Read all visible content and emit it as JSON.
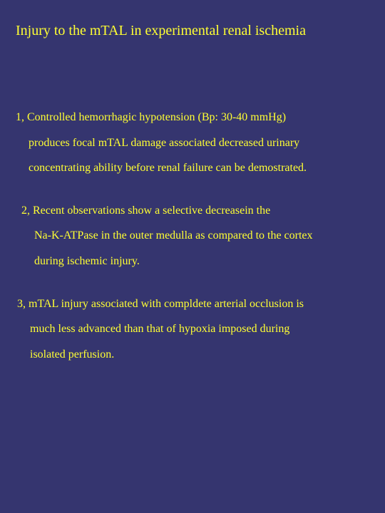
{
  "background_color": "#35356f",
  "text_color": "#ffff33",
  "font_family": "Times New Roman",
  "title": {
    "text": "Injury to the mTAL in experimental renal ischemia",
    "fontsize": 20
  },
  "points": [
    {
      "lines": [
        "1, Controlled hemorrhagic hypotension (Bp: 30-40 mmHg)",
        "produces focal mTAL damage associated decreased urinary",
        "concentrating ability before renal failure can be demostrated."
      ]
    },
    {
      "lines": [
        "2, Recent observations show a selective decreasein the",
        "Na-K-ATPase in the outer medulla as compared to the cortex",
        "during ischemic injury."
      ]
    },
    {
      "lines": [
        "3, mTAL injury associated with compldete arterial occlusion is",
        "much less advanced than that of hypoxia imposed during",
        "isolated perfusion."
      ]
    }
  ],
  "body_fontsize": 16
}
